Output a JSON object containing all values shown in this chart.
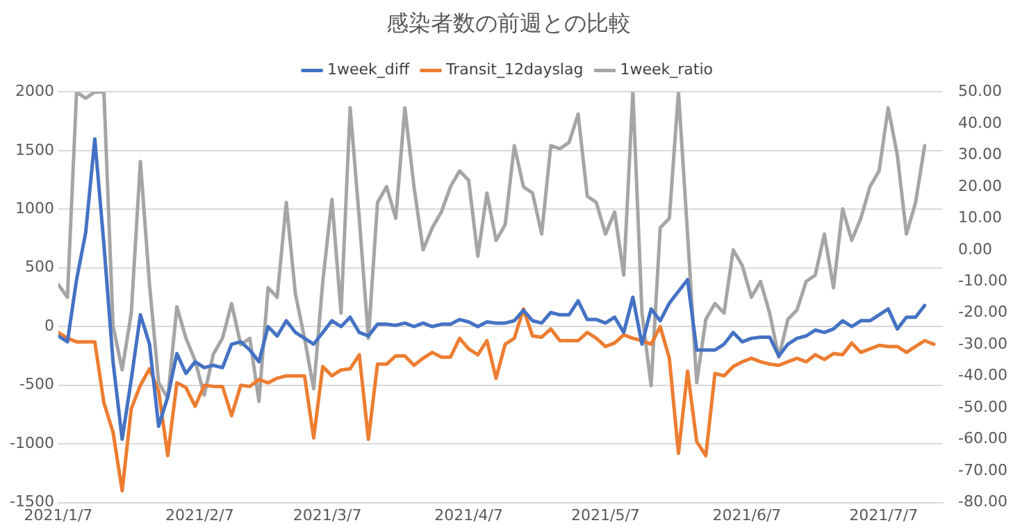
{
  "chart_data": {
    "type": "line",
    "title": "感染者数の前週との比較",
    "x": [
      "2021-01-07",
      "2021-01-09",
      "2021-01-11",
      "2021-01-13",
      "2021-01-15",
      "2021-01-17",
      "2021-01-19",
      "2021-01-21",
      "2021-01-23",
      "2021-01-25",
      "2021-01-27",
      "2021-01-29",
      "2021-01-31",
      "2021-02-02",
      "2021-02-04",
      "2021-02-06",
      "2021-02-08",
      "2021-02-10",
      "2021-02-12",
      "2021-02-14",
      "2021-02-16",
      "2021-02-18",
      "2021-02-20",
      "2021-02-22",
      "2021-02-24",
      "2021-02-26",
      "2021-02-28",
      "2021-03-02",
      "2021-03-04",
      "2021-03-06",
      "2021-03-08",
      "2021-03-10",
      "2021-03-12",
      "2021-03-14",
      "2021-03-16",
      "2021-03-18",
      "2021-03-20",
      "2021-03-22",
      "2021-03-24",
      "2021-03-26",
      "2021-03-28",
      "2021-03-30",
      "2021-04-01",
      "2021-04-03",
      "2021-04-05",
      "2021-04-07",
      "2021-04-09",
      "2021-04-11",
      "2021-04-13",
      "2021-04-15",
      "2021-04-17",
      "2021-04-19",
      "2021-04-21",
      "2021-04-23",
      "2021-04-25",
      "2021-04-27",
      "2021-04-29",
      "2021-05-01",
      "2021-05-03",
      "2021-05-05",
      "2021-05-07",
      "2021-05-09",
      "2021-05-11",
      "2021-05-13",
      "2021-05-15",
      "2021-05-17",
      "2021-05-19",
      "2021-05-21",
      "2021-05-23",
      "2021-05-25",
      "2021-05-27",
      "2021-05-29",
      "2021-05-31",
      "2021-06-02",
      "2021-06-04",
      "2021-06-06",
      "2021-06-08",
      "2021-06-10",
      "2021-06-12",
      "2021-06-14",
      "2021-06-16",
      "2021-06-18",
      "2021-06-20",
      "2021-06-22",
      "2021-06-24",
      "2021-06-26",
      "2021-06-28",
      "2021-06-30",
      "2021-07-02",
      "2021-07-04",
      "2021-07-06",
      "2021-07-08",
      "2021-07-10",
      "2021-07-12",
      "2021-07-14",
      "2021-07-16",
      "2021-07-18"
    ],
    "series": [
      {
        "name": "1week_diff",
        "color": "#4472c4",
        "values": [
          -80,
          -130,
          400,
          800,
          1600,
          700,
          -300,
          -960,
          -450,
          100,
          -150,
          -850,
          -600,
          -230,
          -400,
          -300,
          -350,
          -330,
          -350,
          -150,
          -130,
          -200,
          -300,
          0,
          -80,
          50,
          -50,
          -100,
          -150,
          -50,
          50,
          0,
          80,
          -50,
          -80,
          20,
          20,
          10,
          30,
          0,
          30,
          0,
          20,
          20,
          60,
          40,
          0,
          40,
          30,
          30,
          50,
          140,
          50,
          30,
          120,
          100,
          100,
          220,
          60,
          60,
          30,
          80,
          -50,
          250,
          -150,
          150,
          50,
          200,
          300,
          400,
          -200,
          -200,
          -200,
          -150,
          -50,
          -130,
          -100,
          -90,
          -90,
          -250,
          -150,
          -100,
          -80,
          -30,
          -50,
          -20,
          50,
          0,
          50,
          50,
          100,
          150,
          -20,
          80,
          80,
          180,
          null
        ]
      },
      {
        "name": "Transit_12dayslag",
        "color": "#ed7d31",
        "values": [
          -50,
          -100,
          -130,
          -130,
          -130,
          -650,
          -900,
          -1400,
          -700,
          -500,
          -360,
          -550,
          -1100,
          -480,
          -520,
          -680,
          -500,
          -510,
          -510,
          -760,
          -500,
          -510,
          -450,
          -480,
          -440,
          -420,
          -420,
          -420,
          -950,
          -340,
          -420,
          -370,
          -360,
          -240,
          -960,
          -320,
          -320,
          -250,
          -250,
          -330,
          -270,
          -220,
          -260,
          -260,
          -100,
          -190,
          -240,
          -120,
          -440,
          -150,
          -100,
          150,
          -80,
          -90,
          -20,
          -120,
          -120,
          -120,
          -50,
          -100,
          -170,
          -140,
          -70,
          -100,
          -120,
          -150,
          0,
          -270,
          -1080,
          -380,
          -980,
          -1100,
          -400,
          -420,
          -340,
          -300,
          -270,
          -300,
          -320,
          -330,
          -300,
          -270,
          -300,
          -240,
          -280,
          -230,
          -240,
          -140,
          -220,
          -190,
          -160,
          -170,
          -170,
          -220,
          -170,
          -120,
          -150
        ]
      },
      {
        "name": "1week_ratio",
        "color": "#a5a5a5",
        "axis": "y2",
        "values": [
          -11,
          -15,
          50,
          48,
          50,
          50,
          -24,
          -38,
          -20,
          28,
          -11,
          -42,
          -47,
          -18,
          -28,
          -35,
          -46,
          -33,
          -28,
          -17,
          -30,
          -28,
          -48,
          -12,
          -15,
          15,
          -14,
          -28,
          -44,
          -10,
          16,
          -20,
          45,
          10,
          -28,
          15,
          20,
          10,
          45,
          20,
          0,
          7,
          12,
          20,
          25,
          22,
          -2,
          18,
          3,
          8,
          33,
          20,
          18,
          5,
          33,
          32,
          34,
          43,
          17,
          15,
          5,
          12,
          -8,
          50,
          -20,
          -43,
          7,
          10,
          50,
          5,
          -42,
          -22,
          -17,
          -20,
          0,
          -5,
          -15,
          -10,
          -20,
          -34,
          -22,
          -19,
          -10,
          -8,
          5,
          -12,
          13,
          3,
          10,
          20,
          25,
          45,
          30,
          5,
          15,
          33,
          null
        ]
      }
    ],
    "xlim": [
      "2021-01-07",
      "2021-07-20"
    ],
    "xticks": [
      {
        "value": "2021-01-07",
        "label": "2021/1/7"
      },
      {
        "value": "2021-02-07",
        "label": "2021/2/7"
      },
      {
        "value": "2021-03-07",
        "label": "2021/3/7"
      },
      {
        "value": "2021-04-07",
        "label": "2021/4/7"
      },
      {
        "value": "2021-05-07",
        "label": "2021/5/7"
      },
      {
        "value": "2021-06-07",
        "label": "2021/6/7"
      },
      {
        "value": "2021-07-07",
        "label": "2021/7/7"
      }
    ],
    "ylim": [
      -1500,
      2000
    ],
    "yticks": [
      -1500,
      -1000,
      -500,
      0,
      500,
      1000,
      1500,
      2000
    ],
    "y2lim": [
      -80,
      50
    ],
    "y2ticks": [
      {
        "value": -80,
        "label": "-80.00"
      },
      {
        "value": -70,
        "label": "-70.00"
      },
      {
        "value": -60,
        "label": "-60.00"
      },
      {
        "value": -50,
        "label": "-50.00"
      },
      {
        "value": -40,
        "label": "-40.00"
      },
      {
        "value": -30,
        "label": "-30.00"
      },
      {
        "value": -20,
        "label": "-20.00"
      },
      {
        "value": -10,
        "label": "-10.00"
      },
      {
        "value": 0,
        "label": "0.00"
      },
      {
        "value": 10,
        "label": "10.00"
      },
      {
        "value": 20,
        "label": "20.00"
      },
      {
        "value": 30,
        "label": "30.00"
      },
      {
        "value": 40,
        "label": "40.00"
      },
      {
        "value": 50,
        "label": "50.00"
      }
    ],
    "grid": "y",
    "legend": "top",
    "marker": "none",
    "line_style": "solid"
  }
}
